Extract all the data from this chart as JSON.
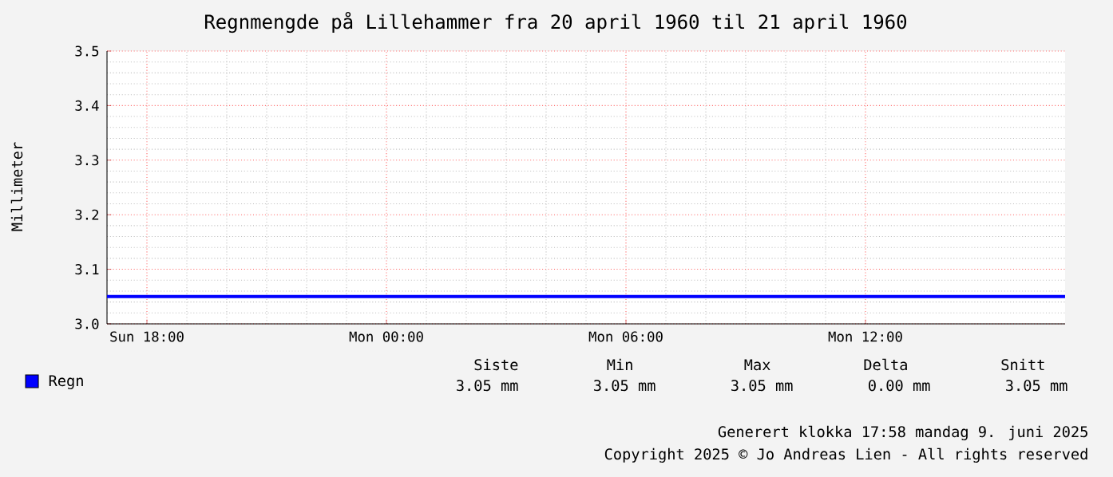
{
  "chart_data": {
    "type": "line",
    "title": "Regnmengde på Lillehammer fra 20 april 1960 til 21 april 1960",
    "ylabel": "Millimeter",
    "x": [
      "1960-04-20T17:00",
      "1960-04-21T17:00"
    ],
    "series": [
      {
        "name": "Regn",
        "color": "#0000ff",
        "values": [
          3.05,
          3.05
        ]
      }
    ],
    "xlim": [
      "1960-04-20T17:00",
      "1960-04-21T17:00"
    ],
    "xticks": [
      {
        "value": "1960-04-20T18:00",
        "label": "Sun 18:00"
      },
      {
        "value": "1960-04-21T00:00",
        "label": "Mon 00:00"
      },
      {
        "value": "1960-04-21T06:00",
        "label": "Mon 06:00"
      },
      {
        "value": "1960-04-21T12:00",
        "label": "Mon 12:00"
      }
    ],
    "ylim": [
      3.0,
      3.5
    ],
    "yticks": [
      {
        "value": 3.0,
        "label": "3.0"
      },
      3.1,
      3.2,
      3.3,
      3.4,
      3.5
    ],
    "grid": true,
    "legend": "bottom",
    "marker": "none",
    "line_style": "solid",
    "annotations": [
      "Siste",
      "Min",
      "Max",
      "Delta",
      "Snitt",
      "3.05 mm",
      "3.05 mm",
      "3.05 mm",
      "0.00 mm",
      "3.05 mm",
      "Generert klokka 17:58 mandag 9. juni 2025",
      "Copyright 2025 © Jo Andreas Lien - All rights reserved"
    ]
  }
}
